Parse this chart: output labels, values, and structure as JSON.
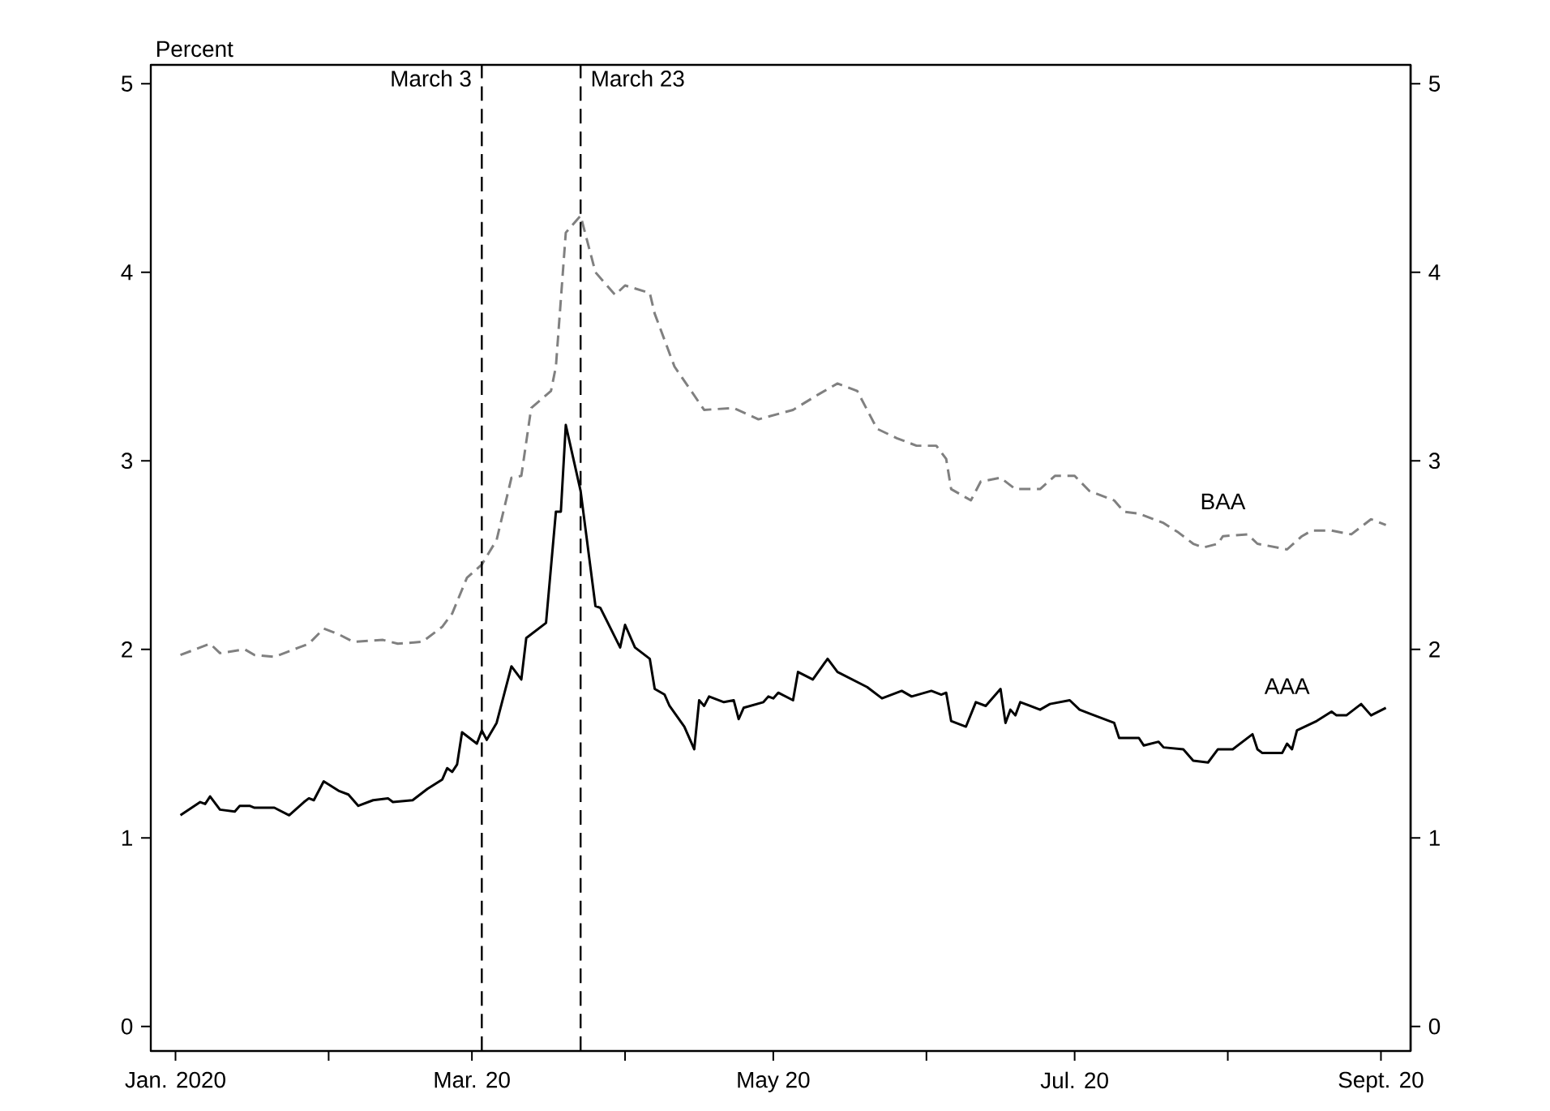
{
  "chart_data": {
    "type": "line",
    "ylabel": "Percent",
    "xlim": [
      "2019-12-27",
      "2020-09-07"
    ],
    "xticks": [
      {
        "value": "2020-01-01",
        "label": "Jan. 2020"
      },
      {
        "value": "2020-02-01",
        "label": null
      },
      {
        "value": "2020-03-01",
        "label": "Mar. 20"
      },
      {
        "value": "2020-04-01",
        "label": null
      },
      {
        "value": "2020-05-01",
        "label": "May 20"
      },
      {
        "value": "2020-06-01",
        "label": null
      },
      {
        "value": "2020-07-01",
        "label": "Jul. 20"
      },
      {
        "value": "2020-08-01",
        "label": null
      },
      {
        "value": "2020-09-01",
        "label": "Sept. 20"
      }
    ],
    "ylim": [
      -0.13,
      5.1
    ],
    "yticks": [
      0,
      1,
      2,
      3,
      4,
      5
    ],
    "y2lim": [
      -0.13,
      5.1
    ],
    "y2ticks": [
      0,
      1,
      2,
      3,
      4,
      5
    ],
    "grid": false,
    "legend": false,
    "ref_lines": [
      {
        "axis": "x",
        "value": "2020-03-03",
        "label": "March 3",
        "color": "#000000",
        "line_style": "dashed"
      },
      {
        "axis": "x",
        "value": "2020-03-23",
        "label": "March 23",
        "color": "#000000",
        "line_style": "dashed"
      }
    ],
    "series": [
      {
        "name": "BAA",
        "color": "#808080",
        "line_style": "dashed",
        "x": [
          "2020-01-02",
          "2020-01-08",
          "2020-01-10",
          "2020-01-15",
          "2020-01-17",
          "2020-01-21",
          "2020-01-26",
          "2020-01-28",
          "2020-01-31",
          "2020-02-03",
          "2020-02-06",
          "2020-02-12",
          "2020-02-15",
          "2020-02-20",
          "2020-02-24",
          "2020-02-26",
          "2020-02-29",
          "2020-03-03",
          "2020-03-06",
          "2020-03-09",
          "2020-03-11",
          "2020-03-13",
          "2020-03-17",
          "2020-03-18",
          "2020-03-20",
          "2020-03-23",
          "2020-03-26",
          "2020-03-30",
          "2020-04-01",
          "2020-04-06",
          "2020-04-07",
          "2020-04-11",
          "2020-04-17",
          "2020-04-23",
          "2020-04-28",
          "2020-05-05",
          "2020-05-10",
          "2020-05-14",
          "2020-05-18",
          "2020-05-22",
          "2020-05-26",
          "2020-05-30",
          "2020-06-03",
          "2020-06-05",
          "2020-06-06",
          "2020-06-10",
          "2020-06-12",
          "2020-06-16",
          "2020-06-19",
          "2020-06-24",
          "2020-06-27",
          "2020-07-01",
          "2020-07-04",
          "2020-07-09",
          "2020-07-11",
          "2020-07-14",
          "2020-07-19",
          "2020-07-22",
          "2020-07-25",
          "2020-07-27",
          "2020-07-30",
          "2020-07-31",
          "2020-08-05",
          "2020-08-07",
          "2020-08-13",
          "2020-08-16",
          "2020-08-18",
          "2020-08-22",
          "2020-08-26",
          "2020-08-30",
          "2020-09-02"
        ],
        "values": [
          1.97,
          2.03,
          1.98,
          2.0,
          1.97,
          1.96,
          2.01,
          2.03,
          2.11,
          2.08,
          2.04,
          2.05,
          2.03,
          2.04,
          2.12,
          2.19,
          2.38,
          2.45,
          2.58,
          2.91,
          2.92,
          3.28,
          3.37,
          3.5,
          4.21,
          4.3,
          4.0,
          3.88,
          3.93,
          3.89,
          3.78,
          3.5,
          3.27,
          3.28,
          3.22,
          3.27,
          3.35,
          3.41,
          3.37,
          3.17,
          3.12,
          3.08,
          3.08,
          3.01,
          2.85,
          2.79,
          2.89,
          2.91,
          2.85,
          2.85,
          2.92,
          2.92,
          2.84,
          2.79,
          2.73,
          2.72,
          2.67,
          2.62,
          2.56,
          2.54,
          2.56,
          2.6,
          2.61,
          2.56,
          2.53,
          2.6,
          2.63,
          2.63,
          2.61,
          2.69,
          2.66
        ]
      },
      {
        "name": "AAA",
        "color": "#000000",
        "line_style": "solid",
        "x": [
          "2020-01-02",
          "2020-01-06",
          "2020-01-07",
          "2020-01-08",
          "2020-01-10",
          "2020-01-13",
          "2020-01-14",
          "2020-01-16",
          "2020-01-17",
          "2020-01-21",
          "2020-01-24",
          "2020-01-27",
          "2020-01-28",
          "2020-01-29",
          "2020-01-31",
          "2020-02-03",
          "2020-02-05",
          "2020-02-07",
          "2020-02-10",
          "2020-02-13",
          "2020-02-14",
          "2020-02-18",
          "2020-02-21",
          "2020-02-24",
          "2020-02-25",
          "2020-02-26",
          "2020-02-27",
          "2020-02-28",
          "2020-03-02",
          "2020-03-03",
          "2020-03-04",
          "2020-03-06",
          "2020-03-09",
          "2020-03-11",
          "2020-03-12",
          "2020-03-16",
          "2020-03-18",
          "2020-03-19",
          "2020-03-20",
          "2020-03-23",
          "2020-03-26",
          "2020-03-27",
          "2020-03-31",
          "2020-04-01",
          "2020-04-03",
          "2020-04-06",
          "2020-04-07",
          "2020-04-09",
          "2020-04-10",
          "2020-04-13",
          "2020-04-15",
          "2020-04-16",
          "2020-04-17",
          "2020-04-18",
          "2020-04-21",
          "2020-04-23",
          "2020-04-24",
          "2020-04-25",
          "2020-04-29",
          "2020-04-30",
          "2020-05-01",
          "2020-05-02",
          "2020-05-05",
          "2020-05-06",
          "2020-05-09",
          "2020-05-12",
          "2020-05-14",
          "2020-05-20",
          "2020-05-23",
          "2020-05-27",
          "2020-05-29",
          "2020-06-02",
          "2020-06-04",
          "2020-06-05",
          "2020-06-06",
          "2020-06-09",
          "2020-06-11",
          "2020-06-13",
          "2020-06-16",
          "2020-06-17",
          "2020-06-18",
          "2020-06-19",
          "2020-06-20",
          "2020-06-24",
          "2020-06-26",
          "2020-06-30",
          "2020-07-02",
          "2020-07-04",
          "2020-07-09",
          "2020-07-10",
          "2020-07-14",
          "2020-07-15",
          "2020-07-18",
          "2020-07-19",
          "2020-07-23",
          "2020-07-25",
          "2020-07-28",
          "2020-07-30",
          "2020-08-02",
          "2020-08-06",
          "2020-08-07",
          "2020-08-08",
          "2020-08-12",
          "2020-08-13",
          "2020-08-14",
          "2020-08-15",
          "2020-08-19",
          "2020-08-22",
          "2020-08-23",
          "2020-08-25",
          "2020-08-28",
          "2020-08-30",
          "2020-09-02"
        ],
        "values": [
          1.12,
          1.19,
          1.18,
          1.22,
          1.15,
          1.14,
          1.17,
          1.17,
          1.16,
          1.16,
          1.12,
          1.19,
          1.21,
          1.2,
          1.3,
          1.25,
          1.23,
          1.17,
          1.2,
          1.21,
          1.19,
          1.2,
          1.26,
          1.31,
          1.37,
          1.35,
          1.39,
          1.56,
          1.5,
          1.57,
          1.52,
          1.61,
          1.91,
          1.84,
          2.06,
          2.14,
          2.73,
          2.73,
          3.19,
          2.84,
          2.23,
          2.22,
          2.01,
          2.13,
          2.01,
          1.95,
          1.79,
          1.76,
          1.7,
          1.59,
          1.47,
          1.73,
          1.7,
          1.75,
          1.72,
          1.73,
          1.63,
          1.69,
          1.72,
          1.75,
          1.74,
          1.77,
          1.73,
          1.88,
          1.84,
          1.95,
          1.88,
          1.8,
          1.74,
          1.78,
          1.75,
          1.78,
          1.76,
          1.77,
          1.62,
          1.59,
          1.72,
          1.7,
          1.79,
          1.61,
          1.68,
          1.65,
          1.72,
          1.68,
          1.71,
          1.73,
          1.68,
          1.66,
          1.61,
          1.53,
          1.53,
          1.49,
          1.51,
          1.48,
          1.47,
          1.41,
          1.4,
          1.47,
          1.47,
          1.55,
          1.47,
          1.45,
          1.45,
          1.5,
          1.47,
          1.57,
          1.62,
          1.67,
          1.65,
          1.65,
          1.71,
          1.65,
          1.69
        ]
      }
    ]
  }
}
